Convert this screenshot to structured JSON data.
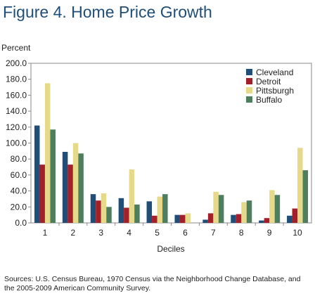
{
  "figure": {
    "title": "Figure 4. Home Price Growth",
    "source": "Sources: U.S. Census Bureau, 1970 Census via the Neighborhood Change Database, and the 2005-2009 American Community Survey."
  },
  "colors": {
    "Cleveland": "#1f4e79",
    "Detroit": "#a31f2a",
    "Pittsburgh": "#e6d98a",
    "Buffalo": "#4d7f5d",
    "axis": "#888888",
    "title": "#1f4e79"
  },
  "chart_data": {
    "type": "bar",
    "ylabel": "Percent",
    "xlabel": "Deciles",
    "ylim": [
      0,
      200
    ],
    "yticks": [
      "0.0",
      "20.0",
      "40.0",
      "60.0",
      "80.0",
      "100.0",
      "120.0",
      "140.0",
      "160.0",
      "180.0",
      "200.0"
    ],
    "categories": [
      "1",
      "2",
      "3",
      "4",
      "5",
      "6",
      "7",
      "8",
      "9",
      "10"
    ],
    "legend_position": "top-right",
    "grid": false,
    "series": [
      {
        "name": "Cleveland",
        "values": [
          122,
          89,
          36,
          31,
          27,
          10,
          4,
          10,
          3,
          9
        ]
      },
      {
        "name": "Detroit",
        "values": [
          73,
          73,
          28,
          19,
          9,
          10,
          12,
          11,
          6,
          18
        ]
      },
      {
        "name": "Pittsburgh",
        "values": [
          175,
          100,
          37,
          67,
          33,
          12,
          39,
          26,
          41,
          94
        ]
      },
      {
        "name": "Buffalo",
        "values": [
          117,
          87,
          20,
          23,
          36,
          0,
          35,
          28,
          35,
          66
        ]
      }
    ]
  }
}
